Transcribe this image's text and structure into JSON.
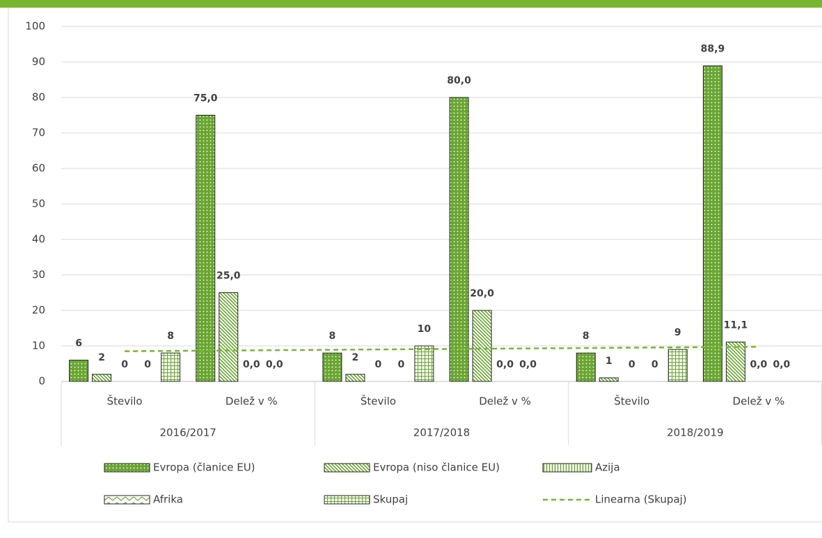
{
  "chart_data": {
    "type": "bar",
    "categories": [
      "Število",
      "Delež v %",
      "Število",
      "Delež v %",
      "Število",
      "Delež v %"
    ],
    "groups": [
      "2016/2017",
      "2017/2018",
      "2018/2019"
    ],
    "series": [
      {
        "name": "Evropa (članice EU)",
        "color": "#6aa632",
        "pattern": "dots",
        "values": [
          6,
          75.0,
          8,
          80.0,
          8,
          88.9
        ],
        "value_labels": [
          "6",
          "75,0",
          "8",
          "80,0",
          "8",
          "88,9"
        ]
      },
      {
        "name": "Evropa (niso članice EU)",
        "color": "#6aa632",
        "pattern": "diagonal",
        "values": [
          2,
          25.0,
          2,
          20.0,
          1,
          11.1
        ],
        "value_labels": [
          "2",
          "25,0",
          "2",
          "20,0",
          "1",
          "11,1"
        ]
      },
      {
        "name": "Azija",
        "color": "#6aa632",
        "pattern": "vertical",
        "values": [
          0,
          0.0,
          0,
          0.0,
          0,
          0.0
        ],
        "value_labels": [
          "0",
          "0,0",
          "0",
          "0,0",
          "0",
          "0,0"
        ]
      },
      {
        "name": "Afrika",
        "color": "#6aa632",
        "pattern": "zigzag",
        "values": [
          0,
          0.0,
          0,
          0.0,
          0,
          0.0
        ],
        "value_labels": [
          "0",
          "0,0",
          "0",
          "0,0",
          "0",
          "0,0"
        ]
      },
      {
        "name": "Skupaj",
        "color": "#6aa632",
        "pattern": "grid",
        "values": [
          8,
          null,
          10,
          null,
          9,
          null
        ],
        "value_labels": [
          "8",
          null,
          "10",
          null,
          "9",
          null
        ]
      }
    ],
    "trendline": {
      "name": "Linearna (Skupaj)",
      "series": 4,
      "color": "#7ab530"
    },
    "ylim": [
      0,
      100
    ],
    "yticks": [
      0,
      10,
      20,
      30,
      40,
      50,
      60,
      70,
      80,
      90,
      100
    ],
    "grid": true
  }
}
